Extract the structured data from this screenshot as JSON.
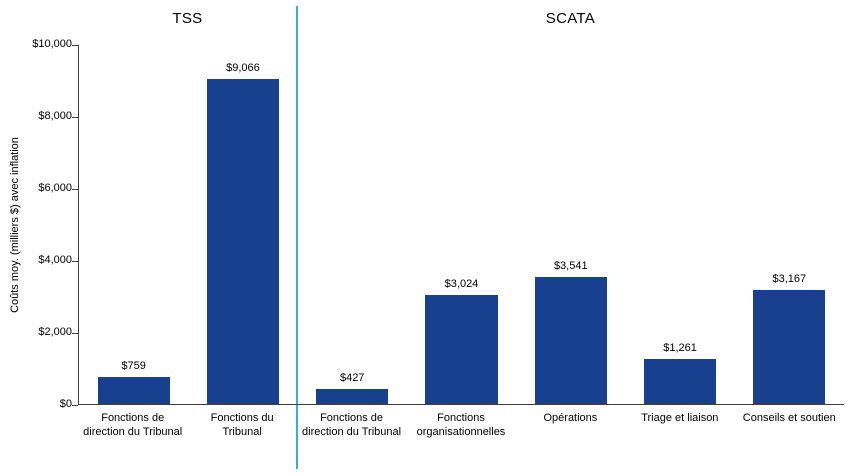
{
  "chart_data": {
    "type": "bar",
    "title": "",
    "ylabel": "Coûts moy. (milliers $) avec inflation",
    "xlabel": "",
    "ylim": [
      0,
      10000
    ],
    "yticks": [
      {
        "label": "$0",
        "value": 0
      },
      {
        "label": "$2,000",
        "value": 2000
      },
      {
        "label": "$4,000",
        "value": 4000
      },
      {
        "label": "$6,000",
        "value": 6000
      },
      {
        "label": "$8,000",
        "value": 8000
      },
      {
        "label": "$10,000",
        "value": 10000
      }
    ],
    "groups": [
      {
        "label": "TSS",
        "span": 2
      },
      {
        "label": "SCATA",
        "span": 5
      }
    ],
    "categories": [
      "Fonctions de direction du Tribunal",
      "Fonctions du Tribunal",
      "Fonctions de direction du Tribunal",
      "Fonctions organisationnelles",
      "Opérations",
      "Triage et liaison",
      "Conseils et soutien"
    ],
    "values": [
      759,
      9066,
      427,
      3024,
      3541,
      1261,
      3167
    ],
    "data_labels": [
      "$759",
      "$9,066",
      "$427",
      "$3,024",
      "$3,541",
      "$1,261",
      "$3,167"
    ],
    "divider_after_index": 1,
    "grid": false,
    "legend_position": "none",
    "colors": {
      "bar": "#17418E",
      "divider": "#3FA9DC",
      "axis": "#404040",
      "text": "#000000"
    }
  }
}
